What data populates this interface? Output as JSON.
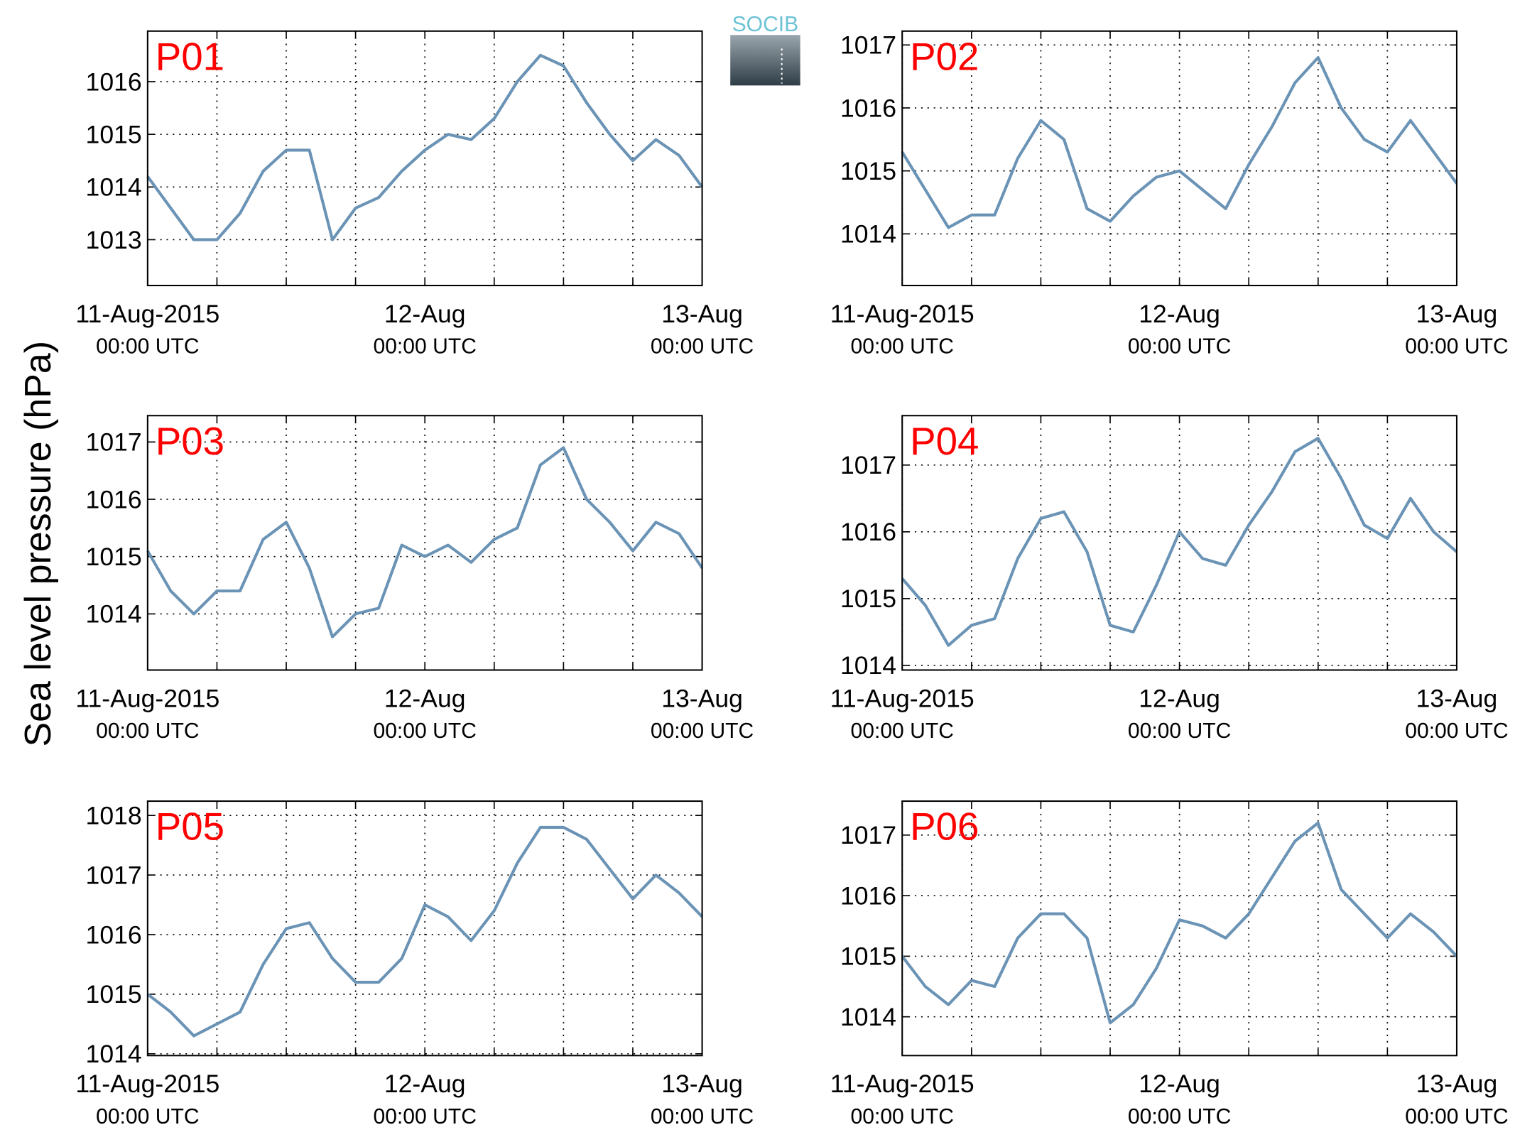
{
  "ylabel": "Sea level pressure (hPa)",
  "logo": "SOCIB",
  "chart_data": [
    {
      "type": "line",
      "title": "P01",
      "x": [
        0,
        2,
        4,
        6,
        8,
        10,
        12,
        14,
        16,
        18,
        20,
        22,
        24,
        26,
        28,
        30,
        32,
        34,
        36,
        38,
        40,
        42,
        44,
        46,
        48
      ],
      "series": [
        {
          "color": "#6a93b5",
          "values": [
            1014.2,
            1013.6,
            1013.0,
            1013.0,
            1013.5,
            1014.3,
            1014.7,
            1014.7,
            1013.0,
            1013.6,
            1013.8,
            1014.3,
            1014.7,
            1015.0,
            1014.9,
            1015.3,
            1016.0,
            1016.5,
            1016.3,
            1015.6,
            1015.0,
            1014.5,
            1014.9,
            1014.6,
            1014.0
          ]
        }
      ],
      "xlim": [
        0,
        48
      ],
      "ylim": [
        1012.13,
        1016.96
      ],
      "yticks": [
        1013,
        1014,
        1015,
        1016
      ],
      "xticks": [
        {
          "value": 0,
          "label": "11-Aug-2015",
          "sublabel": "00:00 UTC"
        },
        {
          "value": 6,
          "label": null
        },
        {
          "value": 12,
          "label": null
        },
        {
          "value": 18,
          "label": null
        },
        {
          "value": 24,
          "label": "12-Aug",
          "sublabel": "00:00 UTC"
        },
        {
          "value": 30,
          "label": null
        },
        {
          "value": 36,
          "label": null
        },
        {
          "value": 42,
          "label": null
        },
        {
          "value": 48,
          "label": "13-Aug",
          "sublabel": "00:00 UTC"
        }
      ],
      "grid": true
    },
    {
      "type": "line",
      "title": "P02",
      "x": [
        0,
        2,
        4,
        6,
        8,
        10,
        12,
        14,
        16,
        18,
        20,
        22,
        24,
        26,
        28,
        30,
        32,
        34,
        36,
        38,
        40,
        42,
        44,
        46,
        48
      ],
      "series": [
        {
          "color": "#6a93b5",
          "values": [
            1015.3,
            1014.7,
            1014.1,
            1014.3,
            1014.3,
            1015.2,
            1015.8,
            1015.5,
            1014.4,
            1014.2,
            1014.6,
            1014.9,
            1015.0,
            1014.7,
            1014.4,
            1015.1,
            1015.7,
            1016.4,
            1016.8,
            1016.0,
            1015.5,
            1015.3,
            1015.8,
            1015.3,
            1014.8
          ]
        }
      ],
      "xlim": [
        0,
        48
      ],
      "ylim": [
        1013.18,
        1017.22
      ],
      "yticks": [
        1014,
        1015,
        1016,
        1017
      ],
      "xticks": [
        {
          "value": 0,
          "label": "11-Aug-2015",
          "sublabel": "00:00 UTC"
        },
        {
          "value": 6,
          "label": null
        },
        {
          "value": 12,
          "label": null
        },
        {
          "value": 18,
          "label": null
        },
        {
          "value": 24,
          "label": "12-Aug",
          "sublabel": "00:00 UTC"
        },
        {
          "value": 30,
          "label": null
        },
        {
          "value": 36,
          "label": null
        },
        {
          "value": 42,
          "label": null
        },
        {
          "value": 48,
          "label": "13-Aug",
          "sublabel": "00:00 UTC"
        }
      ],
      "grid": true
    },
    {
      "type": "line",
      "title": "P03",
      "x": [
        0,
        2,
        4,
        6,
        8,
        10,
        12,
        14,
        16,
        18,
        20,
        22,
        24,
        26,
        28,
        30,
        32,
        34,
        36,
        38,
        40,
        42,
        44,
        46,
        48
      ],
      "series": [
        {
          "color": "#6a93b5",
          "values": [
            1015.1,
            1014.4,
            1014.0,
            1014.4,
            1014.4,
            1015.3,
            1015.6,
            1014.8,
            1013.6,
            1014.0,
            1014.1,
            1015.2,
            1015.0,
            1015.2,
            1014.9,
            1015.3,
            1015.5,
            1016.6,
            1016.9,
            1016.0,
            1015.6,
            1015.1,
            1015.6,
            1015.4,
            1014.8
          ]
        }
      ],
      "xlim": [
        0,
        48
      ],
      "ylim": [
        1013.02,
        1017.46
      ],
      "yticks": [
        1014,
        1015,
        1016,
        1017
      ],
      "xticks": [
        {
          "value": 0,
          "label": "11-Aug-2015",
          "sublabel": "00:00 UTC"
        },
        {
          "value": 6,
          "label": null
        },
        {
          "value": 12,
          "label": null
        },
        {
          "value": 18,
          "label": null
        },
        {
          "value": 24,
          "label": "12-Aug",
          "sublabel": "00:00 UTC"
        },
        {
          "value": 30,
          "label": null
        },
        {
          "value": 36,
          "label": null
        },
        {
          "value": 42,
          "label": null
        },
        {
          "value": 48,
          "label": "13-Aug",
          "sublabel": "00:00 UTC"
        }
      ],
      "grid": true
    },
    {
      "type": "line",
      "title": "P04",
      "x": [
        0,
        2,
        4,
        6,
        8,
        10,
        12,
        14,
        16,
        18,
        20,
        22,
        24,
        26,
        28,
        30,
        32,
        34,
        36,
        38,
        40,
        42,
        44,
        46,
        48
      ],
      "series": [
        {
          "color": "#6a93b5",
          "values": [
            1015.3,
            1014.9,
            1014.3,
            1014.6,
            1014.7,
            1015.6,
            1016.2,
            1016.3,
            1015.7,
            1014.6,
            1014.5,
            1015.2,
            1016.0,
            1015.6,
            1015.5,
            1016.1,
            1016.6,
            1017.2,
            1017.4,
            1016.8,
            1016.1,
            1015.9,
            1016.5,
            1016.0,
            1015.7
          ]
        }
      ],
      "xlim": [
        0,
        48
      ],
      "ylim": [
        1013.93,
        1017.74
      ],
      "yticks": [
        1014,
        1015,
        1016,
        1017
      ],
      "xticks": [
        {
          "value": 0,
          "label": "11-Aug-2015",
          "sublabel": "00:00 UTC"
        },
        {
          "value": 6,
          "label": null
        },
        {
          "value": 12,
          "label": null
        },
        {
          "value": 18,
          "label": null
        },
        {
          "value": 24,
          "label": "12-Aug",
          "sublabel": "00:00 UTC"
        },
        {
          "value": 30,
          "label": null
        },
        {
          "value": 36,
          "label": null
        },
        {
          "value": 42,
          "label": null
        },
        {
          "value": 48,
          "label": "13-Aug",
          "sublabel": "00:00 UTC"
        }
      ],
      "grid": true
    },
    {
      "type": "line",
      "title": "P05",
      "x": [
        0,
        2,
        4,
        6,
        8,
        10,
        12,
        14,
        16,
        18,
        20,
        22,
        24,
        26,
        28,
        30,
        32,
        34,
        36,
        38,
        40,
        42,
        44,
        46,
        48
      ],
      "series": [
        {
          "color": "#6a93b5",
          "values": [
            1015.0,
            1014.7,
            1014.3,
            1014.5,
            1014.7,
            1015.5,
            1016.1,
            1016.2,
            1015.6,
            1015.2,
            1015.2,
            1015.6,
            1016.5,
            1016.3,
            1015.9,
            1016.4,
            1017.2,
            1017.8,
            1017.8,
            1017.6,
            1017.1,
            1016.6,
            1017.0,
            1016.7,
            1016.3
          ]
        }
      ],
      "xlim": [
        0,
        48
      ],
      "ylim": [
        1013.97,
        1018.24
      ],
      "yticks": [
        1014,
        1015,
        1016,
        1017,
        1018
      ],
      "xticks": [
        {
          "value": 0,
          "label": "11-Aug-2015",
          "sublabel": "00:00 UTC"
        },
        {
          "value": 6,
          "label": null
        },
        {
          "value": 12,
          "label": null
        },
        {
          "value": 18,
          "label": null
        },
        {
          "value": 24,
          "label": "12-Aug",
          "sublabel": "00:00 UTC"
        },
        {
          "value": 30,
          "label": null
        },
        {
          "value": 36,
          "label": null
        },
        {
          "value": 42,
          "label": null
        },
        {
          "value": 48,
          "label": "13-Aug",
          "sublabel": "00:00 UTC"
        }
      ],
      "grid": true
    },
    {
      "type": "line",
      "title": "P06",
      "x": [
        0,
        2,
        4,
        6,
        8,
        10,
        12,
        14,
        16,
        18,
        20,
        22,
        24,
        26,
        28,
        30,
        32,
        34,
        36,
        38,
        40,
        42,
        44,
        46,
        48
      ],
      "series": [
        {
          "color": "#6a93b5",
          "values": [
            1015.0,
            1014.5,
            1014.2,
            1014.6,
            1014.5,
            1015.3,
            1015.7,
            1015.7,
            1015.3,
            1013.9,
            1014.2,
            1014.8,
            1015.6,
            1015.5,
            1015.3,
            1015.7,
            1016.3,
            1016.9,
            1017.2,
            1016.1,
            1015.7,
            1015.3,
            1015.7,
            1015.4,
            1015.0
          ]
        }
      ],
      "xlim": [
        0,
        48
      ],
      "ylim": [
        1013.36,
        1017.56
      ],
      "yticks": [
        1014,
        1015,
        1016,
        1017
      ],
      "xticks": [
        {
          "value": 0,
          "label": "11-Aug-2015",
          "sublabel": "00:00 UTC"
        },
        {
          "value": 6,
          "label": null
        },
        {
          "value": 12,
          "label": null
        },
        {
          "value": 18,
          "label": null
        },
        {
          "value": 24,
          "label": "12-Aug",
          "sublabel": "00:00 UTC"
        },
        {
          "value": 30,
          "label": null
        },
        {
          "value": 36,
          "label": null
        },
        {
          "value": 42,
          "label": null
        },
        {
          "value": 48,
          "label": "13-Aug",
          "sublabel": "00:00 UTC"
        }
      ],
      "grid": true
    }
  ]
}
